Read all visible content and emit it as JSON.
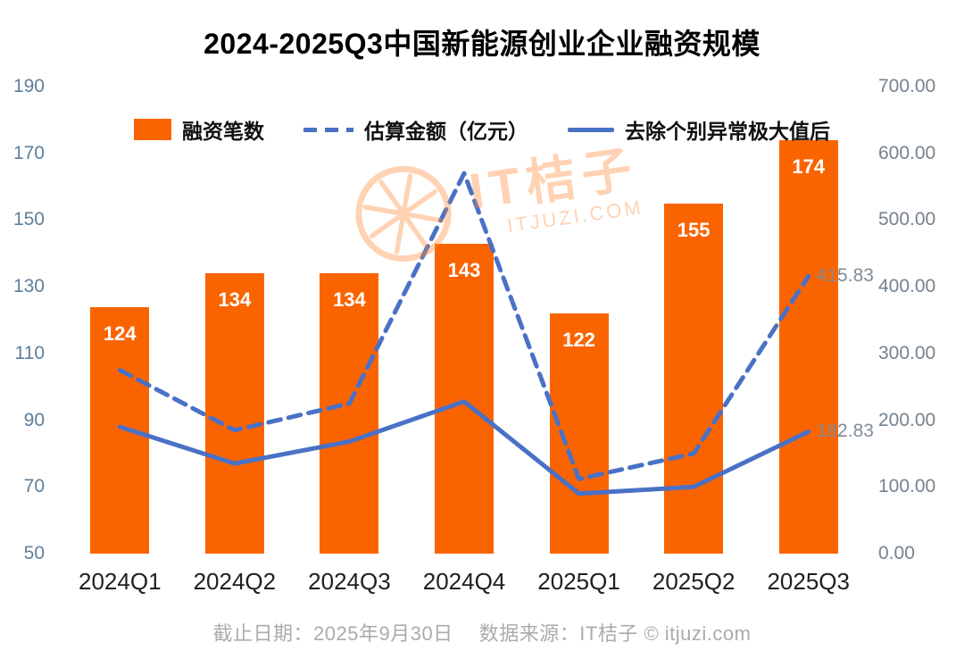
{
  "title": "2024-2025Q3中国新能源创业企业融资规模",
  "footer": "截止日期：2025年9月30日　 数据来源：IT桔子 © itjuzi.com",
  "watermark": {
    "text": "IT桔子",
    "subtext": "ITJUZI.COM"
  },
  "colors": {
    "bar": "#FA6400",
    "line": "#4971C6",
    "left_axis_text": "#5E7E9B",
    "right_axis_text": "#75828E",
    "bar_label": "#FFFFFF",
    "footer_text": "#ABABAB",
    "watermark": "#FF8C3C"
  },
  "chart_data": {
    "type": "bar+line",
    "title": "2024-2025Q3中国新能源创业企业融资规模",
    "categories": [
      "2024Q1",
      "2024Q2",
      "2024Q3",
      "2024Q4",
      "2025Q1",
      "2025Q2",
      "2025Q3"
    ],
    "series": [
      {
        "name": "融资笔数",
        "type": "bar",
        "axis": "left",
        "color": "#FA6400",
        "values": [
          124,
          134,
          134,
          143,
          122,
          155,
          174
        ]
      },
      {
        "name": "估算金额（亿元）",
        "type": "line",
        "dashed": true,
        "axis": "right",
        "color": "#4971C6",
        "values": [
          275,
          185,
          225,
          570,
          112,
          150,
          415.83
        ],
        "end_label": "415.83"
      },
      {
        "name": "去除个别异常极大值后",
        "type": "line",
        "dashed": false,
        "axis": "right",
        "color": "#4971C6",
        "values": [
          190,
          135,
          168,
          228,
          90,
          100,
          182.83
        ],
        "end_label": "182.83"
      }
    ],
    "left_axis": {
      "min": 50,
      "max": 190,
      "ticks": [
        50,
        70,
        90,
        110,
        130,
        150,
        170,
        190
      ]
    },
    "right_axis": {
      "min": 0,
      "max": 700,
      "ticks": [
        "0.00",
        "100.00",
        "200.00",
        "300.00",
        "400.00",
        "500.00",
        "600.00",
        "700.00"
      ]
    },
    "grid": false,
    "legend_position": "top"
  }
}
